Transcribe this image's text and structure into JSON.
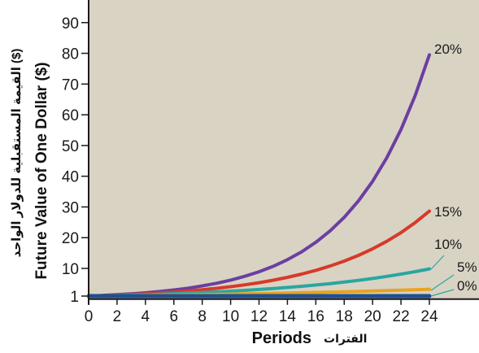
{
  "chart_data": {
    "type": "line",
    "title": "",
    "xlabel": "Periods",
    "xlabel_ar": "الفترات",
    "ylabel": "Future Value of One Dollar ($)",
    "ylabel_ar": "القيمة المستقبلية للدولار الواحد ($)",
    "xlim": [
      0,
      24
    ],
    "ylim": [
      0,
      95
    ],
    "x_ticks": [
      0,
      2,
      4,
      6,
      8,
      10,
      12,
      14,
      16,
      18,
      20,
      22,
      24
    ],
    "y_ticks": [
      1,
      10,
      20,
      30,
      40,
      50,
      60,
      70,
      80,
      90
    ],
    "x": [
      0,
      1,
      2,
      3,
      4,
      5,
      6,
      7,
      8,
      9,
      10,
      11,
      12,
      13,
      14,
      15,
      16,
      17,
      18,
      19,
      20,
      21,
      22,
      23,
      24
    ],
    "series": [
      {
        "name": "20%",
        "color": "#6b3fa0",
        "values": [
          1,
          1.2,
          1.44,
          1.73,
          2.07,
          2.49,
          2.99,
          3.58,
          4.3,
          5.16,
          6.19,
          7.43,
          8.92,
          10.7,
          12.84,
          15.41,
          18.49,
          22.19,
          26.62,
          31.95,
          38.34,
          46.01,
          55.21,
          66.25,
          79.5
        ]
      },
      {
        "name": "15%",
        "color": "#d63a2a",
        "values": [
          1,
          1.15,
          1.32,
          1.52,
          1.75,
          2.01,
          2.31,
          2.66,
          3.06,
          3.52,
          4.05,
          4.65,
          5.35,
          6.15,
          7.08,
          8.14,
          9.36,
          10.76,
          12.38,
          14.23,
          16.37,
          18.82,
          21.64,
          24.89,
          28.63
        ]
      },
      {
        "name": "10%",
        "color": "#2aa6a0",
        "values": [
          1,
          1.1,
          1.21,
          1.33,
          1.46,
          1.61,
          1.77,
          1.95,
          2.14,
          2.36,
          2.59,
          2.85,
          3.14,
          3.45,
          3.8,
          4.18,
          4.59,
          5.05,
          5.56,
          6.12,
          6.73,
          7.4,
          8.14,
          8.95,
          9.85
        ]
      },
      {
        "name": "5%",
        "color": "#e8a322",
        "values": [
          1,
          1.05,
          1.1,
          1.16,
          1.22,
          1.28,
          1.34,
          1.41,
          1.48,
          1.55,
          1.63,
          1.71,
          1.8,
          1.89,
          1.98,
          2.08,
          2.18,
          2.29,
          2.41,
          2.53,
          2.65,
          2.79,
          2.93,
          3.07,
          3.23
        ]
      },
      {
        "name": "0%",
        "color": "#1f4f8f",
        "values": [
          1,
          1,
          1,
          1,
          1,
          1,
          1,
          1,
          1,
          1,
          1,
          1,
          1,
          1,
          1,
          1,
          1,
          1,
          1,
          1,
          1,
          1,
          1,
          1,
          1
        ]
      }
    ],
    "colors": {
      "plot_background": "#d9d3c4",
      "axis": "#1a1a1a",
      "leader": "#2aa6a0"
    },
    "grid": false,
    "legend": "inline-right"
  }
}
